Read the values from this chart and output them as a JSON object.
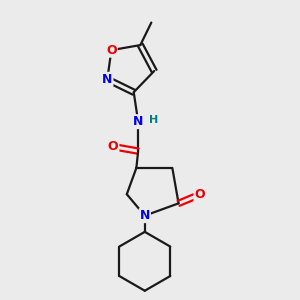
{
  "background_color": "#ebebeb",
  "bond_color": "#1a1a1a",
  "N_color": "#0000ee",
  "O_color": "#ee0000",
  "H_color": "#008080",
  "figsize": [
    3.0,
    3.0
  ],
  "dpi": 100,
  "xlim": [
    0,
    10
  ],
  "ylim": [
    0,
    10
  ]
}
